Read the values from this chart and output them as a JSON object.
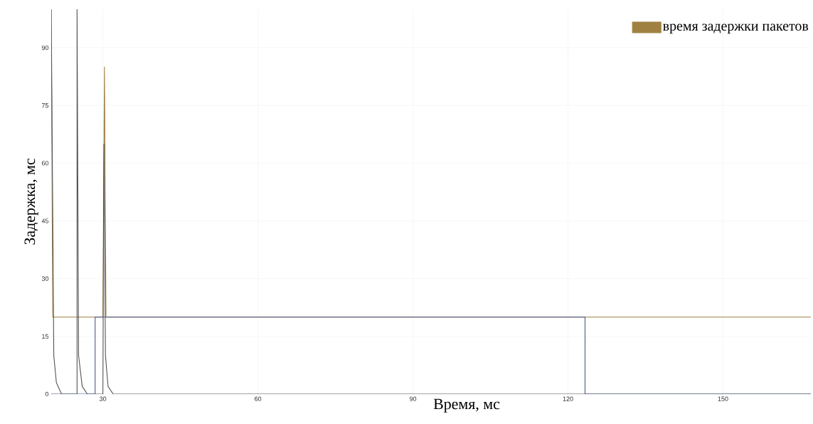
{
  "chart_data": {
    "type": "line",
    "xlabel": "Время, мс",
    "ylabel": "Задержка, мс",
    "xlim": [
      20,
      167
    ],
    "ylim": [
      0,
      100
    ],
    "xticks": [
      30,
      60,
      90,
      120,
      150
    ],
    "yticks": [
      0,
      15,
      30,
      45,
      60,
      75,
      90
    ],
    "grid": true,
    "legend": "top right",
    "series": [
      {
        "name": "время задержки пакетов",
        "color": "#a08040",
        "x": [
          20,
          20.3,
          30,
          30.3,
          30.6,
          167
        ],
        "values": [
          100,
          20,
          20,
          85,
          20,
          20
        ]
      },
      {
        "color": "#555555",
        "x": [
          20,
          20.5,
          21,
          22,
          25,
          25,
          25.3,
          26,
          27,
          30,
          30.2,
          30.5,
          31,
          32,
          167
        ],
        "values": [
          100,
          10,
          3,
          0,
          0,
          100,
          10,
          2,
          0,
          0,
          65,
          10,
          2,
          0,
          0
        ]
      },
      {
        "color": "#4a5a8a",
        "x": [
          20,
          28.5,
          28.5,
          123.3,
          123.3,
          167
        ],
        "values": [
          0,
          0,
          20,
          20,
          0,
          0
        ]
      }
    ]
  }
}
